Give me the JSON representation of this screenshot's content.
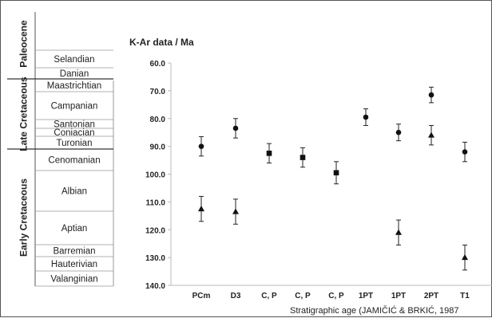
{
  "stratigraphy": {
    "epochs": [
      {
        "name": "Paleocene",
        "stages": [
          "Selandian",
          "Danian"
        ]
      },
      {
        "name": "Late Cretaceous",
        "stages": [
          "Maastrichtian",
          "Campanian",
          "Santonian",
          "Coniacian",
          "Turonian",
          "Cenomanian"
        ]
      },
      {
        "name": "Early Cretaceous",
        "stages": [
          "Albian",
          "Aptian",
          "Barremian",
          "Hauterivian",
          "Valanginian"
        ]
      }
    ]
  },
  "chart_data": {
    "type": "scatter",
    "title": "K-Ar data / Ma",
    "xlabel": "Stratigraphic age (JAMIČIĆ & BRKIĆ, 1987",
    "ylabel": "",
    "y_reversed": true,
    "ylim": [
      60,
      140
    ],
    "yticks": [
      "60.0",
      "70.0",
      "80.0",
      "90.0",
      "100.0",
      "110.0",
      "120.0",
      "130.0",
      "140.0"
    ],
    "categories": [
      "PCm",
      "D3",
      "C, P",
      "C, P",
      "C, P",
      "1PT",
      "1PT",
      "2PT",
      "T1"
    ],
    "grid": false,
    "legend": "none",
    "series": [
      {
        "marker": "circle",
        "points": [
          {
            "category": "PCm",
            "value": 90.0,
            "error": 3.5
          },
          {
            "category": "D3",
            "value": 83.5,
            "error": 3.5
          },
          {
            "category": "1PT",
            "value": 79.5,
            "error": 3.0
          },
          {
            "category": "1PT",
            "value": 85.0,
            "error": 3.0
          },
          {
            "category": "2PT",
            "value": 71.5,
            "error": 2.8
          },
          {
            "category": "T1",
            "value": 92.0,
            "error": 3.5
          }
        ]
      },
      {
        "marker": "square",
        "points": [
          {
            "category": "C, P",
            "value": 92.5,
            "error": 3.5
          },
          {
            "category": "C, P",
            "value": 94.0,
            "error": 3.5
          },
          {
            "category": "C, P",
            "value": 99.5,
            "error": 4.0
          }
        ]
      },
      {
        "marker": "triangle",
        "points": [
          {
            "category": "PCm",
            "value": 112.5,
            "error": 4.5
          },
          {
            "category": "D3",
            "value": 113.5,
            "error": 4.5
          },
          {
            "category": "1PT",
            "value": 121.0,
            "error": 4.5
          },
          {
            "category": "2PT",
            "value": 86.0,
            "error": 3.5
          },
          {
            "category": "T1",
            "value": 130.0,
            "error": 4.5
          }
        ]
      }
    ]
  }
}
